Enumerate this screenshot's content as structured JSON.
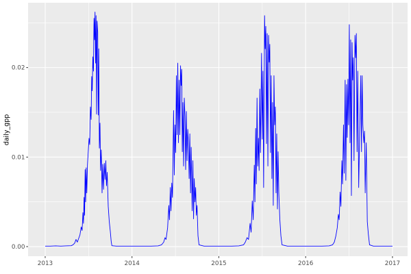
{
  "chart_data": {
    "type": "line",
    "title": "",
    "xlabel": "",
    "ylabel": "daily_gpp",
    "x_range": [
      2012.803,
      2017.174
    ],
    "y_range": [
      -0.00107,
      0.02724
    ],
    "x_ticks": [
      {
        "v": 2013,
        "label": "2013"
      },
      {
        "v": 2014,
        "label": "2014"
      },
      {
        "v": 2015,
        "label": "2015"
      },
      {
        "v": 2016,
        "label": "2016"
      },
      {
        "v": 2017,
        "label": "2017"
      }
    ],
    "y_ticks": [
      {
        "v": 0.0,
        "label": "0.00"
      },
      {
        "v": 0.01,
        "label": "0.01"
      },
      {
        "v": 0.02,
        "label": "0.02"
      }
    ],
    "x_minor": [
      2013.5,
      2014.5,
      2015.5,
      2016.5
    ],
    "y_minor": [
      0.005,
      0.015,
      0.025
    ],
    "grid": true,
    "legend": "none",
    "colors": {
      "panel_bg": "#EBEBEB",
      "grid": "#FFFFFF",
      "line": "#0000FF",
      "tick": "#333333",
      "tick_label": "#4D4D4D",
      "axis_title": "#000000",
      "figure_bg": "#FFFFFF"
    },
    "series": [
      {
        "name": "daily_gpp",
        "points": [
          [
            2013.0,
            5e-05
          ],
          [
            2013.06,
            5e-05
          ],
          [
            2013.12,
            8e-05
          ],
          [
            2013.18,
            5e-05
          ],
          [
            2013.24,
            8e-05
          ],
          [
            2013.3,
            0.0001
          ],
          [
            2013.32,
            0.0002
          ],
          [
            2013.34,
            0.0004
          ],
          [
            2013.355,
            0.0008
          ],
          [
            2013.37,
            0.0005
          ],
          [
            2013.385,
            0.0009
          ],
          [
            2013.4,
            0.0013
          ],
          [
            2013.415,
            0.0022
          ],
          [
            2013.425,
            0.0018
          ],
          [
            2013.435,
            0.0038
          ],
          [
            2013.441,
            0.0026
          ],
          [
            2013.448,
            0.0055
          ],
          [
            2013.454,
            0.0035
          ],
          [
            2013.46,
            0.0086
          ],
          [
            2013.466,
            0.005
          ],
          [
            2013.472,
            0.0088
          ],
          [
            2013.479,
            0.006
          ],
          [
            2013.487,
            0.0091
          ],
          [
            2013.496,
            0.0106
          ],
          [
            2013.505,
            0.0121
          ],
          [
            2013.513,
            0.0114
          ],
          [
            2013.521,
            0.0156
          ],
          [
            2013.529,
            0.0142
          ],
          [
            2013.536,
            0.019
          ],
          [
            2013.542,
            0.0174
          ],
          [
            2013.549,
            0.0212
          ],
          [
            2013.556,
            0.0196
          ],
          [
            2013.562,
            0.0255
          ],
          [
            2013.568,
            0.0231
          ],
          [
            2013.574,
            0.0262
          ],
          [
            2013.58,
            0.0205
          ],
          [
            2013.586,
            0.0258
          ],
          [
            2013.592,
            0.0148
          ],
          [
            2013.598,
            0.0252
          ],
          [
            2013.605,
            0.024
          ],
          [
            2013.611,
            0.0147
          ],
          [
            2013.617,
            0.0221
          ],
          [
            2013.624,
            0.011
          ],
          [
            2013.631,
            0.0138
          ],
          [
            2013.638,
            0.0085
          ],
          [
            2013.646,
            0.0108
          ],
          [
            2013.655,
            0.006
          ],
          [
            2013.663,
            0.0092
          ],
          [
            2013.672,
            0.0064
          ],
          [
            2013.681,
            0.0093
          ],
          [
            2013.69,
            0.0075
          ],
          [
            2013.698,
            0.0096
          ],
          [
            2013.706,
            0.0068
          ],
          [
            2013.714,
            0.0083
          ],
          [
            2013.726,
            0.0045
          ],
          [
            2013.738,
            0.0028
          ],
          [
            2013.75,
            0.0017
          ],
          [
            2013.76,
            0.0006
          ],
          [
            2013.768,
            0.0001
          ],
          [
            2013.82,
            5e-05
          ],
          [
            2013.9,
            5e-05
          ],
          [
            2013.98,
            5e-05
          ],
          [
            2014.06,
            5e-05
          ],
          [
            2014.14,
            5e-05
          ],
          [
            2014.22,
            5e-05
          ],
          [
            2014.3,
            8e-05
          ],
          [
            2014.34,
            0.0002
          ],
          [
            2014.365,
            0.0005
          ],
          [
            2014.38,
            0.001
          ],
          [
            2014.392,
            0.0008
          ],
          [
            2014.41,
            0.0021
          ],
          [
            2014.424,
            0.0046
          ],
          [
            2014.432,
            0.003
          ],
          [
            2014.441,
            0.0066
          ],
          [
            2014.449,
            0.004
          ],
          [
            2014.458,
            0.0071
          ],
          [
            2014.466,
            0.0055
          ],
          [
            2014.479,
            0.0152
          ],
          [
            2014.487,
            0.008
          ],
          [
            2014.495,
            0.0136
          ],
          [
            2014.503,
            0.0105
          ],
          [
            2014.511,
            0.0191
          ],
          [
            2014.519,
            0.0125
          ],
          [
            2014.527,
            0.0205
          ],
          [
            2014.535,
            0.0116
          ],
          [
            2014.543,
            0.0186
          ],
          [
            2014.551,
            0.0125
          ],
          [
            2014.559,
            0.0202
          ],
          [
            2014.566,
            0.018
          ],
          [
            2014.572,
            0.0198
          ],
          [
            2014.579,
            0.0106
          ],
          [
            2014.586,
            0.0161
          ],
          [
            2014.594,
            0.009
          ],
          [
            2014.602,
            0.0166
          ],
          [
            2014.61,
            0.0146
          ],
          [
            2014.618,
            0.0086
          ],
          [
            2014.626,
            0.0151
          ],
          [
            2014.634,
            0.0096
          ],
          [
            2014.642,
            0.0131
          ],
          [
            2014.65,
            0.0116
          ],
          [
            2014.658,
            0.0076
          ],
          [
            2014.666,
            0.0126
          ],
          [
            2014.674,
            0.006
          ],
          [
            2014.682,
            0.0111
          ],
          [
            2014.693,
            0.004
          ],
          [
            2014.701,
            0.0096
          ],
          [
            2014.709,
            0.0031
          ],
          [
            2014.717,
            0.0076
          ],
          [
            2014.725,
            0.005
          ],
          [
            2014.733,
            0.0066
          ],
          [
            2014.741,
            0.0035
          ],
          [
            2014.749,
            0.0046
          ],
          [
            2014.76,
            0.0012
          ],
          [
            2014.772,
            0.0002
          ],
          [
            2014.83,
            5e-05
          ],
          [
            2014.91,
            5e-05
          ],
          [
            2014.99,
            5e-05
          ],
          [
            2015.07,
            5e-05
          ],
          [
            2015.15,
            5e-05
          ],
          [
            2015.23,
            8e-05
          ],
          [
            2015.285,
            0.0002
          ],
          [
            2015.305,
            0.0005
          ],
          [
            2015.325,
            0.001
          ],
          [
            2015.342,
            0.0008
          ],
          [
            2015.36,
            0.0026
          ],
          [
            2015.372,
            0.0016
          ],
          [
            2015.385,
            0.0051
          ],
          [
            2015.396,
            0.003
          ],
          [
            2015.408,
            0.0091
          ],
          [
            2015.416,
            0.005
          ],
          [
            2015.424,
            0.0132
          ],
          [
            2015.432,
            0.007
          ],
          [
            2015.44,
            0.0166
          ],
          [
            2015.448,
            0.009
          ],
          [
            2015.456,
            0.0121
          ],
          [
            2015.464,
            0.0085
          ],
          [
            2015.472,
            0.0176
          ],
          [
            2015.48,
            0.0105
          ],
          [
            2015.492,
            0.0216
          ],
          [
            2015.5,
            0.012
          ],
          [
            2015.508,
            0.0196
          ],
          [
            2015.516,
            0.0066
          ],
          [
            2015.527,
            0.0258
          ],
          [
            2015.534,
            0.0221
          ],
          [
            2015.541,
            0.0246
          ],
          [
            2015.549,
            0.0115
          ],
          [
            2015.557,
            0.0238
          ],
          [
            2015.565,
            0.009
          ],
          [
            2015.573,
            0.0236
          ],
          [
            2015.58,
            0.0206
          ],
          [
            2015.587,
            0.0226
          ],
          [
            2015.595,
            0.0105
          ],
          [
            2015.603,
            0.0191
          ],
          [
            2015.611,
            0.0076
          ],
          [
            2015.619,
            0.0161
          ],
          [
            2015.627,
            0.0046
          ],
          [
            2015.635,
            0.0191
          ],
          [
            2015.643,
            0.0136
          ],
          [
            2015.651,
            0.0156
          ],
          [
            2015.659,
            0.006
          ],
          [
            2015.667,
            0.0126
          ],
          [
            2015.675,
            0.0042
          ],
          [
            2015.683,
            0.0106
          ],
          [
            2015.691,
            0.006
          ],
          [
            2015.703,
            0.003
          ],
          [
            2015.715,
            0.0012
          ],
          [
            2015.728,
            0.0002
          ],
          [
            2015.79,
            5e-05
          ],
          [
            2015.87,
            5e-05
          ],
          [
            2015.95,
            5e-05
          ],
          [
            2016.03,
            5e-05
          ],
          [
            2016.11,
            5e-05
          ],
          [
            2016.19,
            5e-05
          ],
          [
            2016.27,
            8e-05
          ],
          [
            2016.31,
            0.0002
          ],
          [
            2016.33,
            0.0005
          ],
          [
            2016.348,
            0.0012
          ],
          [
            2016.364,
            0.0021
          ],
          [
            2016.377,
            0.0036
          ],
          [
            2016.386,
            0.003
          ],
          [
            2016.397,
            0.0061
          ],
          [
            2016.406,
            0.0045
          ],
          [
            2016.417,
            0.0096
          ],
          [
            2016.425,
            0.007
          ],
          [
            2016.436,
            0.0136
          ],
          [
            2016.444,
            0.0082
          ],
          [
            2016.455,
            0.0186
          ],
          [
            2016.463,
            0.0074
          ],
          [
            2016.471,
            0.0181
          ],
          [
            2016.479,
            0.0122
          ],
          [
            2016.487,
            0.0187
          ],
          [
            2016.495,
            0.0136
          ],
          [
            2016.503,
            0.0248
          ],
          [
            2016.511,
            0.0116
          ],
          [
            2016.519,
            0.0231
          ],
          [
            2016.527,
            0.0057
          ],
          [
            2016.535,
            0.0228
          ],
          [
            2016.542,
            0.0186
          ],
          [
            2016.549,
            0.0211
          ],
          [
            2016.557,
            0.0096
          ],
          [
            2016.568,
            0.0236
          ],
          [
            2016.576,
            0.0211
          ],
          [
            2016.584,
            0.0238
          ],
          [
            2016.592,
            0.0106
          ],
          [
            2016.6,
            0.0196
          ],
          [
            2016.611,
            0.0066
          ],
          [
            2016.623,
            0.0131
          ],
          [
            2016.635,
            0.0191
          ],
          [
            2016.643,
            0.0106
          ],
          [
            2016.651,
            0.0191
          ],
          [
            2016.659,
            0.0136
          ],
          [
            2016.67,
            0.0116
          ],
          [
            2016.678,
            0.0129
          ],
          [
            2016.686,
            0.006
          ],
          [
            2016.698,
            0.0116
          ],
          [
            2016.71,
            0.0028
          ],
          [
            2016.722,
            0.0014
          ],
          [
            2016.736,
            0.0002
          ],
          [
            2016.78,
            5e-05
          ],
          [
            2016.85,
            5e-05
          ],
          [
            2016.92,
            5e-05
          ],
          [
            2017.0,
            5e-05
          ]
        ]
      }
    ]
  }
}
